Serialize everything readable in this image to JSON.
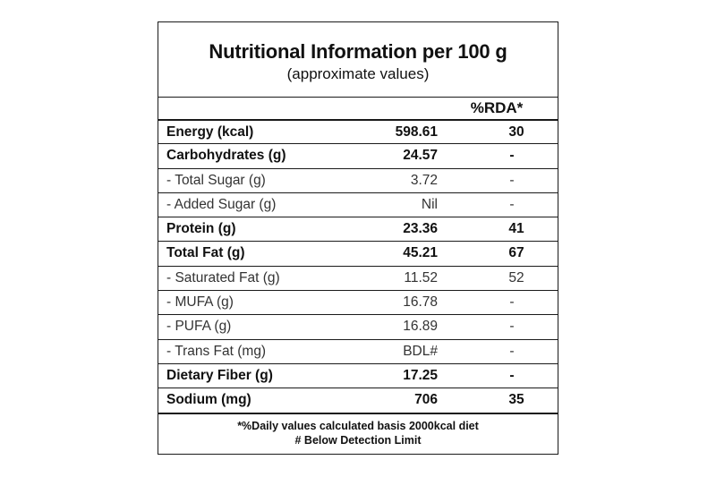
{
  "panel": {
    "title": "Nutritional Information per 100 g",
    "subtitle": "(approximate values)",
    "rda_header": "%RDA*",
    "rows": [
      {
        "label": "Energy (kcal)",
        "value": "598.61",
        "rda": "30",
        "bold": true
      },
      {
        "label": "Carbohydrates (g)",
        "value": "24.57",
        "rda": "-",
        "bold": true
      },
      {
        "label": "- Total Sugar (g)",
        "value": "3.72",
        "rda": "-",
        "bold": false
      },
      {
        "label": "- Added Sugar (g)",
        "value": "Nil",
        "rda": "-",
        "bold": false
      },
      {
        "label": "Protein (g)",
        "value": "23.36",
        "rda": "41",
        "bold": true
      },
      {
        "label": "Total Fat (g)",
        "value": "45.21",
        "rda": "67",
        "bold": true
      },
      {
        "label": "- Saturated Fat (g)",
        "value": "11.52",
        "rda": "52",
        "bold": false
      },
      {
        "label": "- MUFA (g)",
        "value": "16.78",
        "rda": "-",
        "bold": false
      },
      {
        "label": "- PUFA (g)",
        "value": "16.89",
        "rda": "-",
        "bold": false
      },
      {
        "label": "- Trans Fat (mg)",
        "value": "BDL#",
        "rda": "-",
        "bold": false
      },
      {
        "label": "Dietary Fiber (g)",
        "value": "17.25",
        "rda": "-",
        "bold": true
      },
      {
        "label": "Sodium (mg)",
        "value": "706",
        "rda": "35",
        "bold": true
      }
    ],
    "footer_line1": "*%Daily values calculated basis 2000kcal diet",
    "footer_line2": "# Below Detection Limit"
  }
}
